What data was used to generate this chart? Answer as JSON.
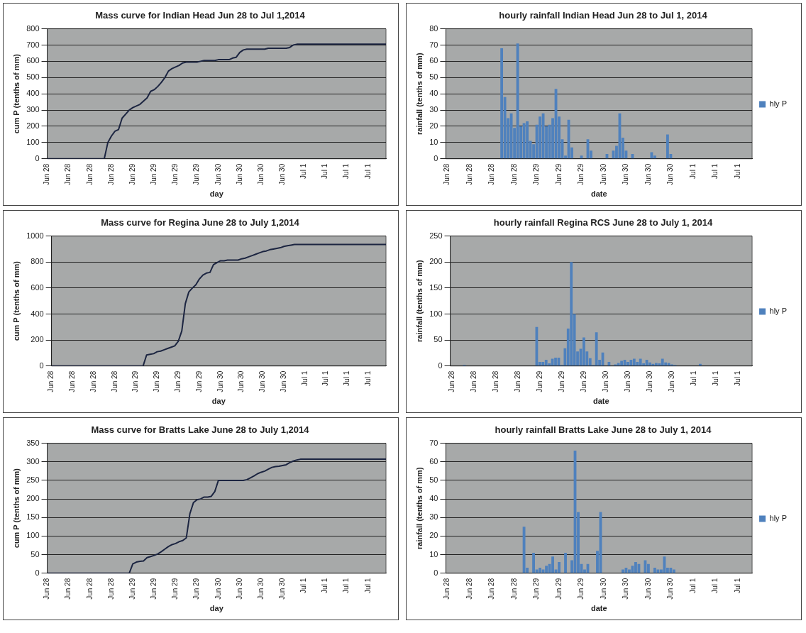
{
  "chart_data": [
    {
      "type": "line",
      "title": "Mass curve for Indian Head Jun 28 to Jul 1,2014",
      "xlabel": "day",
      "ylabel": "cum P (tenths of mm)",
      "categories": [
        "Jun 28",
        null,
        null,
        null,
        null,
        null,
        "Jun 28",
        null,
        null,
        null,
        null,
        null,
        "Jun 28",
        null,
        null,
        null,
        null,
        null,
        "Jun 28",
        null,
        null,
        null,
        null,
        null,
        "Jun 29",
        null,
        null,
        null,
        null,
        null,
        "Jun 29",
        null,
        null,
        null,
        null,
        null,
        "Jun 29",
        null,
        null,
        null,
        null,
        null,
        "Jun 29",
        null,
        null,
        null,
        null,
        null,
        "Jun 30",
        null,
        null,
        null,
        null,
        null,
        "Jun 30",
        null,
        null,
        null,
        null,
        null,
        "Jun 30",
        null,
        null,
        null,
        null,
        null,
        "Jun 30",
        null,
        null,
        null,
        null,
        null,
        "Jul 1",
        null,
        null,
        null,
        null,
        null,
        "Jul 1",
        null,
        null,
        null,
        null,
        null,
        "Jul 1",
        null,
        null,
        null,
        null,
        null,
        "Jul 1",
        null,
        null,
        null,
        null,
        null
      ],
      "series": [
        {
          "color": "#1c2541",
          "values": [
            0,
            0,
            0,
            0,
            0,
            0,
            0,
            0,
            0,
            0,
            0,
            0,
            0,
            0,
            0,
            0,
            0,
            100,
            140,
            170,
            180,
            250,
            275,
            300,
            315,
            325,
            335,
            355,
            375,
            415,
            425,
            445,
            470,
            500,
            540,
            555,
            565,
            575,
            590,
            595,
            595,
            595,
            595,
            600,
            605,
            605,
            605,
            605,
            610,
            610,
            610,
            610,
            620,
            625,
            655,
            670,
            675,
            675,
            675,
            675,
            675,
            675,
            680,
            680,
            680,
            680,
            680,
            680,
            685,
            700,
            705,
            705,
            705,
            705,
            705,
            705,
            705,
            705,
            705,
            705,
            705,
            705,
            705,
            705,
            705,
            705,
            705,
            705,
            705,
            705,
            705,
            705,
            705,
            705,
            705,
            705
          ]
        }
      ],
      "ylim": [
        0,
        800
      ],
      "yticks": [
        0,
        100,
        200,
        300,
        400,
        500,
        600,
        700,
        800
      ],
      "grid": "y"
    },
    {
      "type": "bar",
      "title": "hourly rainfall Indian Head Jun 28 to Jul 1, 2014",
      "xlabel": "date",
      "ylabel": "rainfall (tenths of mm)",
      "categories": [
        "Jun 28",
        null,
        null,
        null,
        null,
        null,
        null,
        "Jun 28",
        null,
        null,
        null,
        null,
        null,
        null,
        "Jun 28",
        null,
        null,
        null,
        null,
        null,
        null,
        "Jun 28",
        null,
        null,
        null,
        null,
        null,
        null,
        "Jun 29",
        null,
        null,
        null,
        null,
        null,
        null,
        "Jun 29",
        null,
        null,
        null,
        null,
        null,
        null,
        "Jun 29",
        null,
        null,
        null,
        null,
        null,
        null,
        "Jun 30",
        null,
        null,
        null,
        null,
        null,
        null,
        "Jun 30",
        null,
        null,
        null,
        null,
        null,
        null,
        "Jun 30",
        null,
        null,
        null,
        null,
        null,
        null,
        "Jun 30",
        null,
        null,
        null,
        null,
        null,
        null,
        "Jul 1",
        null,
        null,
        null,
        null,
        null,
        null,
        "Jul 1",
        null,
        null,
        null,
        null,
        null,
        null,
        "Jul 1",
        null,
        null,
        null,
        null
      ],
      "series": [
        {
          "name": "hly P",
          "color": "#4f81bd",
          "values": [
            0,
            0,
            0,
            0,
            0,
            0,
            0,
            0,
            0,
            0,
            0,
            0,
            0,
            0,
            0,
            0,
            0,
            68,
            38,
            25,
            28,
            19,
            71,
            20,
            22,
            23,
            11,
            9,
            21,
            26,
            28,
            20,
            21,
            25,
            43,
            26,
            12,
            2,
            24,
            7,
            0,
            0,
            2,
            0,
            12,
            5,
            0,
            0,
            0,
            0,
            3,
            0,
            5,
            8,
            28,
            13,
            5,
            0,
            3,
            0,
            0,
            0,
            0,
            0,
            4,
            2,
            0,
            0,
            0,
            15,
            3,
            0,
            0,
            0,
            0,
            0,
            0,
            0,
            0,
            0,
            0,
            0,
            0,
            0,
            0,
            0,
            0,
            0,
            0,
            0,
            0,
            0,
            0,
            0,
            0,
            0
          ]
        }
      ],
      "ylim": [
        0,
        80
      ],
      "yticks": [
        0,
        10,
        20,
        30,
        40,
        50,
        60,
        70,
        80
      ],
      "grid": "y",
      "legend": "right"
    },
    {
      "type": "line",
      "title": "Mass curve for Regina June 28 to July 1,2014",
      "xlabel": "day",
      "ylabel": "cum P (tenths of mm)",
      "categories": [
        "Jun 28",
        null,
        null,
        null,
        null,
        null,
        "Jun 28",
        null,
        null,
        null,
        null,
        null,
        "Jun 28",
        null,
        null,
        null,
        null,
        null,
        "Jun 28",
        null,
        null,
        null,
        null,
        null,
        "Jun 29",
        null,
        null,
        null,
        null,
        null,
        "Jun 29",
        null,
        null,
        null,
        null,
        null,
        "Jun 29",
        null,
        null,
        null,
        null,
        null,
        "Jun 29",
        null,
        null,
        null,
        null,
        null,
        "Jun 30",
        null,
        null,
        null,
        null,
        null,
        "Jun 30",
        null,
        null,
        null,
        null,
        null,
        "Jun 30",
        null,
        null,
        null,
        null,
        null,
        "Jun 30",
        null,
        null,
        null,
        null,
        null,
        "Jul 1",
        null,
        null,
        null,
        null,
        null,
        "Jul 1",
        null,
        null,
        null,
        null,
        null,
        "Jul 1",
        null,
        null,
        null,
        null,
        null,
        "Jul 1",
        null,
        null,
        null,
        null,
        null
      ],
      "series": [
        {
          "color": "#1c2541",
          "values": [
            0,
            0,
            0,
            0,
            0,
            0,
            0,
            0,
            0,
            0,
            0,
            0,
            0,
            0,
            0,
            0,
            0,
            0,
            0,
            0,
            0,
            0,
            0,
            0,
            0,
            0,
            0,
            85,
            90,
            95,
            110,
            115,
            125,
            135,
            145,
            155,
            190,
            270,
            480,
            570,
            600,
            625,
            670,
            700,
            715,
            720,
            780,
            795,
            810,
            810,
            815,
            815,
            815,
            815,
            825,
            830,
            840,
            850,
            860,
            870,
            880,
            885,
            895,
            900,
            905,
            910,
            920,
            925,
            930,
            935,
            935,
            935,
            935,
            935,
            935,
            935,
            935,
            935,
            935,
            935,
            935,
            935,
            935,
            935,
            935,
            935,
            935,
            935,
            935,
            935,
            935,
            935,
            935,
            935,
            935,
            935
          ]
        }
      ],
      "ylim": [
        0,
        1000
      ],
      "yticks": [
        0,
        200,
        400,
        600,
        800,
        1000
      ],
      "grid": "y"
    },
    {
      "type": "bar",
      "title": "hourly rainfall Regina RCS June 28 to July 1, 2014",
      "xlabel": "date",
      "ylabel": "rainfall (tenths of mm)",
      "categories": [
        "Jun 28",
        null,
        null,
        null,
        null,
        null,
        null,
        "Jun 28",
        null,
        null,
        null,
        null,
        null,
        null,
        "Jun 28",
        null,
        null,
        null,
        null,
        null,
        null,
        "Jun 28",
        null,
        null,
        null,
        null,
        null,
        null,
        "Jun 29",
        null,
        null,
        null,
        null,
        null,
        null,
        "Jun 29",
        null,
        null,
        null,
        null,
        null,
        null,
        "Jun 29",
        null,
        null,
        null,
        null,
        null,
        null,
        "Jun 30",
        null,
        null,
        null,
        null,
        null,
        null,
        "Jun 30",
        null,
        null,
        null,
        null,
        null,
        null,
        "Jun 30",
        null,
        null,
        null,
        null,
        null,
        null,
        "Jun 30",
        null,
        null,
        null,
        null,
        null,
        null,
        "Jul 1",
        null,
        null,
        null,
        null,
        null,
        null,
        "Jul 1",
        null,
        null,
        null,
        null,
        null,
        null,
        "Jul 1",
        null,
        null,
        null,
        null
      ],
      "series": [
        {
          "name": "hly P",
          "color": "#4f81bd",
          "values": [
            0,
            0,
            0,
            0,
            2,
            0,
            0,
            0,
            0,
            0,
            0,
            0,
            0,
            0,
            0,
            0,
            0,
            0,
            0,
            0,
            0,
            0,
            0,
            0,
            0,
            0,
            0,
            75,
            8,
            8,
            12,
            5,
            14,
            16,
            16,
            2,
            34,
            72,
            200,
            100,
            28,
            33,
            55,
            28,
            15,
            2,
            65,
            12,
            26,
            0,
            8,
            0,
            3,
            6,
            10,
            12,
            8,
            12,
            14,
            8,
            14,
            5,
            12,
            7,
            4,
            6,
            5,
            14,
            7,
            6,
            3,
            2,
            0,
            0,
            0,
            0,
            0,
            0,
            0,
            4,
            0,
            0,
            0,
            0,
            0,
            0,
            0,
            0,
            0,
            0,
            0,
            0,
            0,
            0,
            0,
            0
          ]
        }
      ],
      "ylim": [
        0,
        250
      ],
      "yticks": [
        0,
        50,
        100,
        150,
        200,
        250
      ],
      "grid": "y",
      "legend": "right"
    },
    {
      "type": "line",
      "title": "Mass curve for Bratts Lake June 28 to July 1,2014",
      "xlabel": "day",
      "ylabel": "cum P (tenths of mm)",
      "categories": [
        "Jun 28",
        null,
        null,
        null,
        null,
        null,
        "Jun 28",
        null,
        null,
        null,
        null,
        null,
        "Jun 28",
        null,
        null,
        null,
        null,
        null,
        "Jun 28",
        null,
        null,
        null,
        null,
        null,
        "Jun 29",
        null,
        null,
        null,
        null,
        null,
        "Jun 29",
        null,
        null,
        null,
        null,
        null,
        "Jun 29",
        null,
        null,
        null,
        null,
        null,
        "Jun 29",
        null,
        null,
        null,
        null,
        null,
        "Jun 30",
        null,
        null,
        null,
        null,
        null,
        "Jun 30",
        null,
        null,
        null,
        null,
        null,
        "Jun 30",
        null,
        null,
        null,
        null,
        null,
        "Jun 30",
        null,
        null,
        null,
        null,
        null,
        "Jul 1",
        null,
        null,
        null,
        null,
        null,
        "Jul 1",
        null,
        null,
        null,
        null,
        null,
        "Jul 1",
        null,
        null,
        null,
        null,
        null,
        "Jul 1",
        null,
        null,
        null,
        null,
        null
      ],
      "series": [
        {
          "color": "#1c2541",
          "values": [
            0,
            0,
            0,
            0,
            0,
            0,
            0,
            0,
            0,
            0,
            0,
            0,
            0,
            0,
            0,
            0,
            0,
            0,
            0,
            0,
            0,
            0,
            0,
            0,
            25,
            30,
            32,
            33,
            42,
            45,
            48,
            52,
            58,
            65,
            72,
            77,
            80,
            85,
            88,
            95,
            160,
            190,
            198,
            200,
            205,
            205,
            207,
            220,
            250,
            250,
            250,
            250,
            250,
            250,
            250,
            250,
            252,
            257,
            262,
            268,
            272,
            275,
            280,
            285,
            287,
            288,
            290,
            292,
            298,
            302,
            305,
            307,
            307,
            307,
            307,
            307,
            307,
            307,
            307,
            307,
            307,
            307,
            307,
            307,
            307,
            307,
            307,
            307,
            307,
            307,
            307,
            307,
            307,
            307,
            307,
            307
          ]
        }
      ],
      "ylim": [
        0,
        350
      ],
      "yticks": [
        0,
        50,
        100,
        150,
        200,
        250,
        300,
        350
      ],
      "grid": "y"
    },
    {
      "type": "bar",
      "title": "hourly rainfall Bratts Lake June 28 to July 1, 2014",
      "xlabel": "date",
      "ylabel": "rainfall (tenths of mm)",
      "categories": [
        "Jun 28",
        null,
        null,
        null,
        null,
        null,
        null,
        "Jun 28",
        null,
        null,
        null,
        null,
        null,
        null,
        "Jun 28",
        null,
        null,
        null,
        null,
        null,
        null,
        "Jun 28",
        null,
        null,
        null,
        null,
        null,
        null,
        "Jun 29",
        null,
        null,
        null,
        null,
        null,
        null,
        "Jun 29",
        null,
        null,
        null,
        null,
        null,
        null,
        "Jun 29",
        null,
        null,
        null,
        null,
        null,
        null,
        "Jun 30",
        null,
        null,
        null,
        null,
        null,
        null,
        "Jun 30",
        null,
        null,
        null,
        null,
        null,
        null,
        "Jun 30",
        null,
        null,
        null,
        null,
        null,
        null,
        "Jun 30",
        null,
        null,
        null,
        null,
        null,
        null,
        "Jul 1",
        null,
        null,
        null,
        null,
        null,
        null,
        "Jul 1",
        null,
        null,
        null,
        null,
        null,
        null,
        "Jul 1",
        null,
        null,
        null,
        null
      ],
      "series": [
        {
          "name": "hly P",
          "color": "#4f81bd",
          "values": [
            0,
            0,
            0,
            0,
            0,
            0,
            0,
            0,
            0,
            0,
            0,
            0,
            0,
            0,
            0,
            0,
            0,
            0,
            0,
            0,
            0,
            0,
            0,
            0,
            25,
            3,
            0,
            11,
            2,
            3,
            2,
            4,
            5,
            9,
            2,
            6,
            0,
            11,
            0,
            7,
            66,
            33,
            5,
            2,
            5,
            0,
            0,
            12,
            33,
            0,
            0,
            0,
            0,
            0,
            0,
            2,
            3,
            2,
            4,
            6,
            5,
            0,
            7,
            5,
            0,
            3,
            2,
            2,
            9,
            3,
            3,
            2,
            0,
            0,
            0,
            0,
            0,
            0,
            0,
            0,
            0,
            0,
            0,
            0,
            0,
            0,
            0,
            0,
            0,
            0,
            0,
            0,
            0,
            0,
            0,
            0
          ]
        }
      ],
      "ylim": [
        0,
        70
      ],
      "yticks": [
        0,
        10,
        20,
        30,
        40,
        50,
        60,
        70
      ],
      "grid": "y",
      "legend": "right"
    }
  ]
}
